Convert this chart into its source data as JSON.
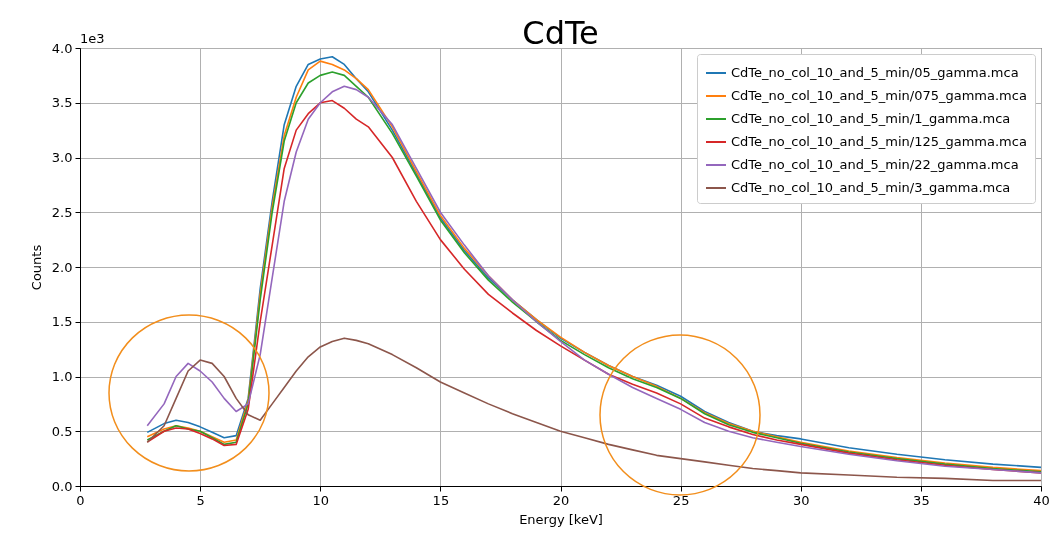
{
  "chart_data": {
    "type": "line",
    "title": "CdTe",
    "xlabel": "Energy [keV]",
    "ylabel": "Counts",
    "annotations": [
      "1e3"
    ],
    "x": [
      2.8,
      3.5,
      4,
      4.5,
      5,
      5.5,
      6,
      6.5,
      7,
      7.5,
      8,
      8.5,
      9,
      9.5,
      10,
      10.5,
      11,
      11.5,
      12,
      13,
      14,
      15,
      16,
      17,
      18,
      19,
      20,
      21,
      22,
      23,
      24,
      25,
      26,
      27,
      28,
      29,
      30,
      32,
      34,
      36,
      38,
      40
    ],
    "series": [
      {
        "name": "CdTe_no_col_10_and_5_min/05_gamma.mca",
        "color": "#1f77b4",
        "values": [
          0.49,
          0.57,
          0.6,
          0.58,
          0.54,
          0.49,
          0.44,
          0.46,
          0.8,
          1.8,
          2.6,
          3.3,
          3.65,
          3.85,
          3.9,
          3.92,
          3.85,
          3.72,
          3.6,
          3.25,
          2.85,
          2.45,
          2.15,
          1.9,
          1.7,
          1.52,
          1.35,
          1.22,
          1.1,
          1.0,
          0.92,
          0.82,
          0.68,
          0.58,
          0.5,
          0.46,
          0.43,
          0.35,
          0.29,
          0.24,
          0.2,
          0.17
        ]
      },
      {
        "name": "CdTe_no_col_10_and_5_min/075_gamma.mca",
        "color": "#ff7f0e",
        "values": [
          0.45,
          0.52,
          0.55,
          0.53,
          0.5,
          0.45,
          0.4,
          0.42,
          0.78,
          1.75,
          2.55,
          3.2,
          3.55,
          3.8,
          3.88,
          3.85,
          3.8,
          3.72,
          3.62,
          3.28,
          2.87,
          2.47,
          2.17,
          1.92,
          1.7,
          1.52,
          1.36,
          1.22,
          1.1,
          1.0,
          0.91,
          0.8,
          0.67,
          0.57,
          0.5,
          0.45,
          0.4,
          0.32,
          0.26,
          0.21,
          0.17,
          0.14
        ]
      },
      {
        "name": "CdTe_no_col_10_and_5_min/1_gamma.mca",
        "color": "#2ca02c",
        "values": [
          0.42,
          0.5,
          0.55,
          0.52,
          0.5,
          0.44,
          0.38,
          0.4,
          0.75,
          1.7,
          2.5,
          3.15,
          3.5,
          3.68,
          3.75,
          3.78,
          3.75,
          3.65,
          3.55,
          3.22,
          2.83,
          2.43,
          2.13,
          1.88,
          1.68,
          1.5,
          1.33,
          1.2,
          1.08,
          0.98,
          0.9,
          0.8,
          0.66,
          0.56,
          0.49,
          0.44,
          0.39,
          0.31,
          0.25,
          0.2,
          0.16,
          0.13
        ]
      },
      {
        "name": "CdTe_no_col_10_and_5_min/125_gamma.mca",
        "color": "#d62728",
        "values": [
          0.4,
          0.5,
          0.53,
          0.52,
          0.48,
          0.43,
          0.37,
          0.38,
          0.7,
          1.5,
          2.2,
          2.9,
          3.25,
          3.4,
          3.5,
          3.52,
          3.45,
          3.35,
          3.28,
          3.0,
          2.6,
          2.25,
          1.98,
          1.75,
          1.58,
          1.42,
          1.28,
          1.15,
          1.02,
          0.93,
          0.85,
          0.75,
          0.62,
          0.54,
          0.47,
          0.42,
          0.38,
          0.3,
          0.24,
          0.19,
          0.15,
          0.12
        ]
      },
      {
        "name": "CdTe_no_col_10_and_5_min/22_gamma.mca",
        "color": "#9467bd",
        "values": [
          0.55,
          0.75,
          1.0,
          1.12,
          1.05,
          0.95,
          0.8,
          0.68,
          0.75,
          1.2,
          1.9,
          2.6,
          3.05,
          3.35,
          3.5,
          3.6,
          3.65,
          3.62,
          3.55,
          3.3,
          2.9,
          2.5,
          2.2,
          1.92,
          1.7,
          1.5,
          1.32,
          1.15,
          1.02,
          0.9,
          0.8,
          0.7,
          0.58,
          0.5,
          0.44,
          0.4,
          0.36,
          0.29,
          0.23,
          0.18,
          0.15,
          0.12
        ]
      },
      {
        "name": "CdTe_no_col_10_and_5_min/3_gamma.mca",
        "color": "#8c564b",
        "values": [
          0.4,
          0.55,
          0.8,
          1.05,
          1.15,
          1.12,
          1.0,
          0.8,
          0.65,
          0.6,
          0.75,
          0.9,
          1.05,
          1.18,
          1.27,
          1.32,
          1.35,
          1.33,
          1.3,
          1.2,
          1.08,
          0.95,
          0.85,
          0.75,
          0.66,
          0.58,
          0.5,
          0.44,
          0.38,
          0.33,
          0.28,
          0.25,
          0.22,
          0.19,
          0.16,
          0.14,
          0.12,
          0.1,
          0.08,
          0.07,
          0.05,
          0.05
        ]
      }
    ],
    "xlim": [
      0,
      40
    ],
    "xticks": [
      0,
      5,
      10,
      15,
      20,
      25,
      30,
      35,
      40
    ],
    "ylim": [
      0,
      4
    ],
    "yticks": [
      {
        "value": 0,
        "label": "0.0"
      },
      {
        "value": 0.5,
        "label": "0.5"
      },
      {
        "value": 1,
        "label": "1.0"
      },
      {
        "value": 1.5,
        "label": "1.5"
      },
      {
        "value": 2,
        "label": "2.0"
      },
      {
        "value": 2.5,
        "label": "2.5"
      },
      {
        "value": 3,
        "label": "3.0"
      },
      {
        "value": 3.5,
        "label": "3.5"
      },
      {
        "value": 4,
        "label": "4.0"
      }
    ],
    "grid": true,
    "legend": "top right",
    "marker": "none",
    "line_style": "solid"
  }
}
